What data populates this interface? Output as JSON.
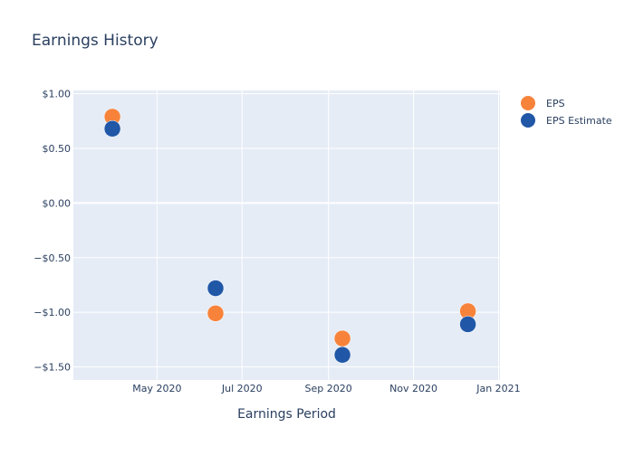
{
  "chart_data": {
    "type": "scatter",
    "title": "Earnings History",
    "xlabel": "Earnings Period",
    "ylabel": "",
    "x_axis": {
      "type": "date",
      "range": [
        "2020-03-02",
        "2021-01-02"
      ],
      "tick_values": [
        "2020-05-01",
        "2020-07-01",
        "2020-09-01",
        "2020-11-01",
        "2021-01-01"
      ],
      "tick_labels": [
        "May 2020",
        "Jul 2020",
        "Sep 2020",
        "Nov 2020",
        "Jan 2021"
      ]
    },
    "y_axis": {
      "range": [
        -1.62,
        1.03
      ],
      "tick_values": [
        1.0,
        0.5,
        0.0,
        -0.5,
        -1.0,
        -1.5
      ],
      "tick_labels": [
        "$1.00",
        "$0.50",
        "$0.00",
        "−$0.50",
        "−$1.00",
        "−$1.50"
      ]
    },
    "grid": true,
    "legend": {
      "placement": "top-right"
    },
    "series": [
      {
        "name": "EPS",
        "color": "#f7833b",
        "points": [
          {
            "x": "2020-03-30",
            "y": 0.79
          },
          {
            "x": "2020-06-12",
            "y": -1.01
          },
          {
            "x": "2020-09-11",
            "y": -1.24
          },
          {
            "x": "2020-12-10",
            "y": -0.99
          }
        ]
      },
      {
        "name": "EPS Estimate",
        "color": "#2057a7",
        "points": [
          {
            "x": "2020-03-30",
            "y": 0.68
          },
          {
            "x": "2020-06-12",
            "y": -0.78
          },
          {
            "x": "2020-09-11",
            "y": -1.39
          },
          {
            "x": "2020-12-10",
            "y": -1.11
          }
        ]
      }
    ],
    "colors": {
      "plot_background": "#e5ecf6",
      "grid": "#ffffff",
      "text": "#2a3f5f"
    }
  }
}
